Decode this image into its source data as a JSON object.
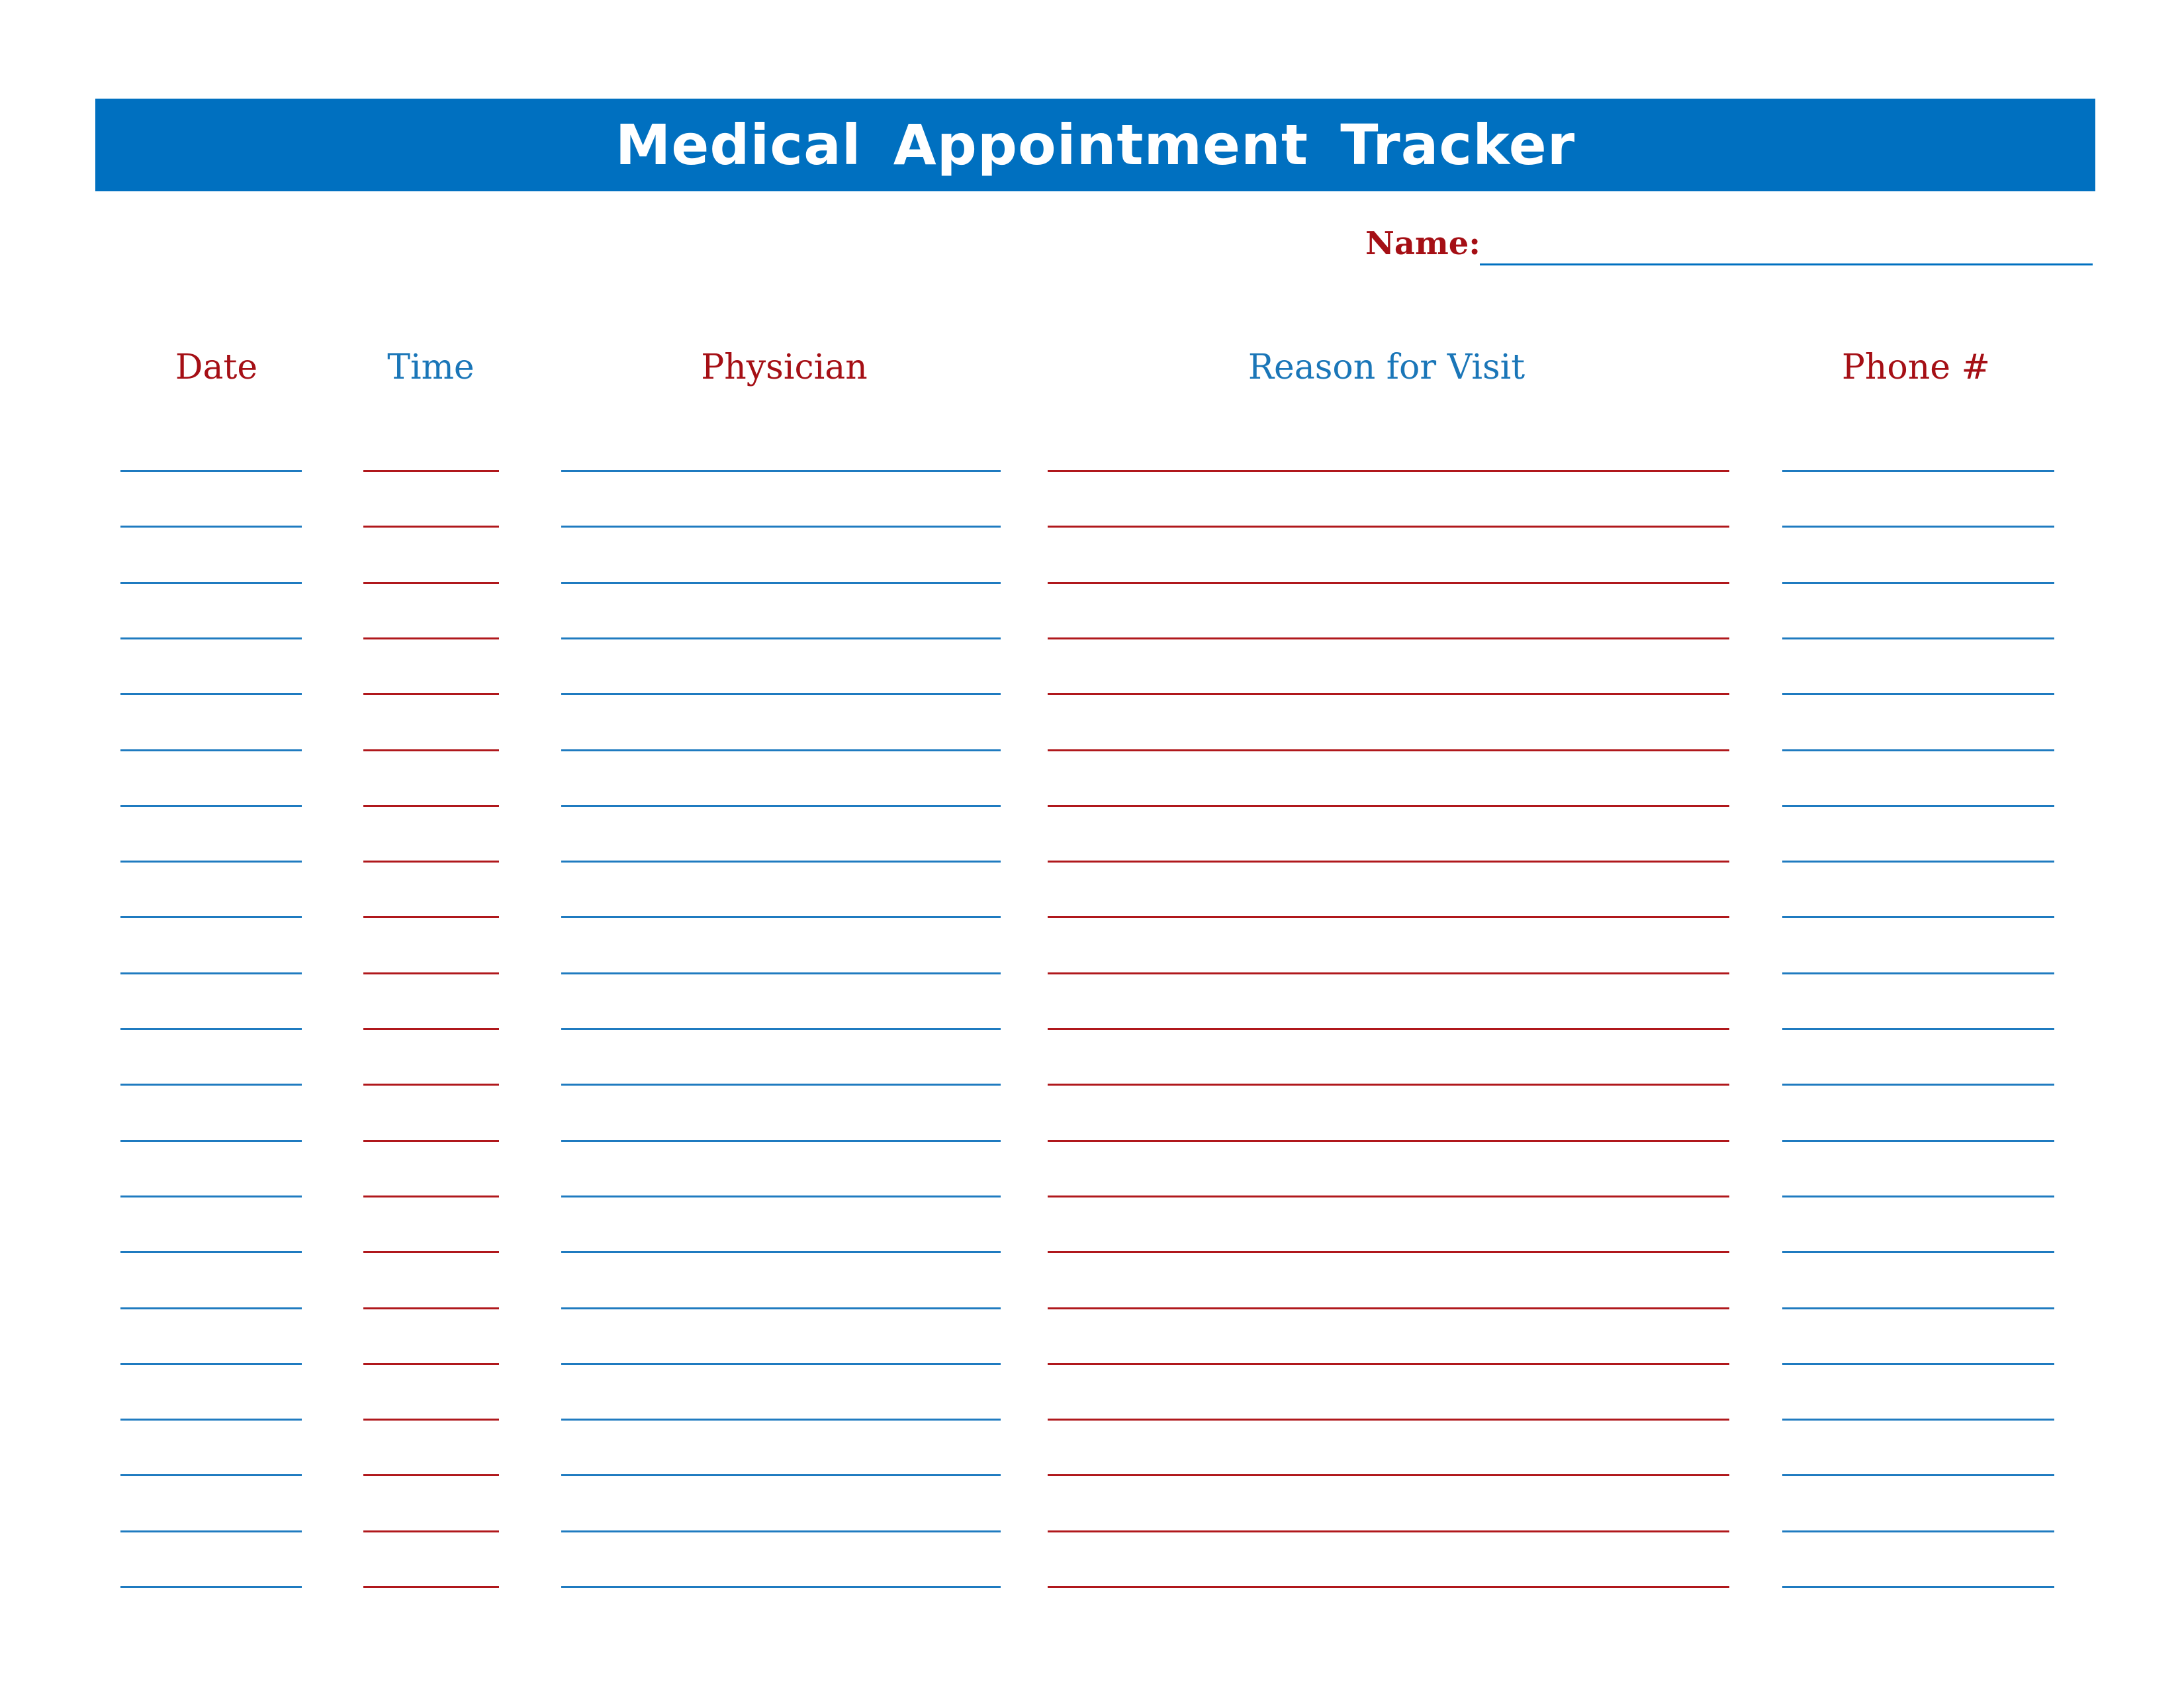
{
  "title": "Medical Appointment Tracker",
  "name_label": "Name:",
  "colors": {
    "banner": "#0070c0",
    "blue_text": "#1a76b8",
    "red_text": "#a50f15",
    "blue_line": "#1f7bc0",
    "red_line": "#b0181c"
  },
  "columns": [
    {
      "label": "Date",
      "color": "red",
      "line_color": "blue"
    },
    {
      "label": "Time",
      "color": "blue",
      "line_color": "red"
    },
    {
      "label": "Physician",
      "color": "red",
      "line_color": "blue"
    },
    {
      "label": "Reason for Visit",
      "color": "blue",
      "line_color": "red"
    },
    {
      "label": "Phone #",
      "color": "red",
      "line_color": "blue"
    }
  ],
  "row_count": 21
}
